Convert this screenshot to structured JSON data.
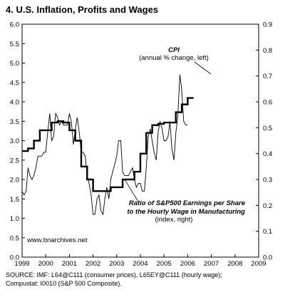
{
  "title": "4. U.S. Inflation, Profits and Wages",
  "source_lines": [
    "SOURCE: IMF: L64@C111 (consumer prices), L65EY@C111 (hourly wage);",
    "Compustat: I0010 (S&P 500 Composite)."
  ],
  "chart_data": {
    "type": "line",
    "title": "4. U.S. Inflation, Profits and Wages",
    "x_ticks": [
      "1999",
      "2000",
      "2001",
      "2002",
      "2003",
      "2004",
      "2005",
      "2006",
      "2007",
      "2008",
      "2009"
    ],
    "xlim": [
      1999,
      2009
    ],
    "ylim_left": [
      0,
      6
    ],
    "ylim_right": [
      0,
      0.9
    ],
    "y_left_ticks": [
      "0.0",
      "0.5",
      "1.0",
      "1.5",
      "2.0",
      "2.5",
      "3.0",
      "3.5",
      "4.0",
      "4.5",
      "5.0",
      "5.5",
      "6.0"
    ],
    "y_right_ticks": [
      "0.0",
      "0.1",
      "0.2",
      "0.3",
      "0.4",
      "0.5",
      "0.6",
      "0.7",
      "0.8",
      "0.9"
    ],
    "grid": false,
    "series": [
      {
        "name": "CPI",
        "axis": "left",
        "style": "thin",
        "points": [
          [
            1999.0,
            1.7
          ],
          [
            1999.08,
            1.6
          ],
          [
            1999.17,
            1.7
          ],
          [
            1999.25,
            2.3
          ],
          [
            1999.33,
            2.1
          ],
          [
            1999.42,
            2.0
          ],
          [
            1999.5,
            2.1
          ],
          [
            1999.58,
            2.3
          ],
          [
            1999.67,
            2.6
          ],
          [
            1999.75,
            2.6
          ],
          [
            1999.83,
            2.6
          ],
          [
            1999.92,
            2.7
          ],
          [
            2000.0,
            2.7
          ],
          [
            2000.08,
            3.2
          ],
          [
            2000.17,
            3.7
          ],
          [
            2000.25,
            3.0
          ],
          [
            2000.33,
            3.1
          ],
          [
            2000.42,
            3.7
          ],
          [
            2000.5,
            3.6
          ],
          [
            2000.58,
            3.4
          ],
          [
            2000.67,
            3.5
          ],
          [
            2000.75,
            3.4
          ],
          [
            2000.83,
            3.4
          ],
          [
            2000.92,
            3.4
          ],
          [
            2001.0,
            3.7
          ],
          [
            2001.08,
            3.5
          ],
          [
            2001.17,
            2.9
          ],
          [
            2001.25,
            3.3
          ],
          [
            2001.33,
            3.6
          ],
          [
            2001.42,
            3.2
          ],
          [
            2001.5,
            2.7
          ],
          [
            2001.58,
            2.7
          ],
          [
            2001.67,
            2.6
          ],
          [
            2001.75,
            2.1
          ],
          [
            2001.83,
            1.9
          ],
          [
            2001.92,
            1.6
          ],
          [
            2002.0,
            1.1
          ],
          [
            2002.08,
            1.1
          ],
          [
            2002.17,
            1.5
          ],
          [
            2002.25,
            1.6
          ],
          [
            2002.33,
            1.2
          ],
          [
            2002.42,
            1.1
          ],
          [
            2002.5,
            1.5
          ],
          [
            2002.58,
            1.8
          ],
          [
            2002.67,
            1.5
          ],
          [
            2002.75,
            2.0
          ],
          [
            2002.83,
            2.2
          ],
          [
            2002.92,
            2.4
          ],
          [
            2003.0,
            2.6
          ],
          [
            2003.08,
            3.0
          ],
          [
            2003.17,
            3.0
          ],
          [
            2003.25,
            2.2
          ],
          [
            2003.33,
            2.1
          ],
          [
            2003.42,
            2.1
          ],
          [
            2003.5,
            2.1
          ],
          [
            2003.58,
            2.2
          ],
          [
            2003.67,
            2.3
          ],
          [
            2003.75,
            2.0
          ],
          [
            2003.83,
            1.8
          ],
          [
            2003.92,
            1.9
          ],
          [
            2004.0,
            1.9
          ],
          [
            2004.08,
            1.7
          ],
          [
            2004.17,
            1.7
          ],
          [
            2004.25,
            2.3
          ],
          [
            2004.33,
            3.1
          ],
          [
            2004.42,
            3.3
          ],
          [
            2004.5,
            3.0
          ],
          [
            2004.58,
            2.7
          ],
          [
            2004.67,
            2.5
          ],
          [
            2004.75,
            3.2
          ],
          [
            2004.83,
            3.5
          ],
          [
            2004.92,
            3.3
          ],
          [
            2005.0,
            3.0
          ],
          [
            2005.08,
            3.0
          ],
          [
            2005.17,
            3.1
          ],
          [
            2005.25,
            3.5
          ],
          [
            2005.33,
            2.8
          ],
          [
            2005.42,
            2.5
          ],
          [
            2005.5,
            3.2
          ],
          [
            2005.58,
            3.6
          ],
          [
            2005.67,
            4.7
          ],
          [
            2005.75,
            4.3
          ],
          [
            2005.83,
            3.5
          ],
          [
            2005.92,
            3.4
          ],
          [
            2006.0,
            3.4
          ]
        ]
      },
      {
        "name": "Ratio of S&P500 Earnings per Share to the Hourly Wage in Manufacturing",
        "axis": "right",
        "style": "thick-step",
        "points": [
          [
            1999.0,
            0.41
          ],
          [
            1999.25,
            0.41
          ],
          [
            1999.25,
            0.42
          ],
          [
            1999.5,
            0.42
          ],
          [
            1999.5,
            0.45
          ],
          [
            1999.75,
            0.45
          ],
          [
            1999.75,
            0.49
          ],
          [
            2000.0,
            0.49
          ],
          [
            2000.0,
            0.49
          ],
          [
            2000.25,
            0.49
          ],
          [
            2000.25,
            0.52
          ],
          [
            2000.5,
            0.52
          ],
          [
            2000.5,
            0.525
          ],
          [
            2000.75,
            0.525
          ],
          [
            2000.75,
            0.52
          ],
          [
            2001.0,
            0.52
          ],
          [
            2001.0,
            0.49
          ],
          [
            2001.25,
            0.49
          ],
          [
            2001.25,
            0.45
          ],
          [
            2001.5,
            0.45
          ],
          [
            2001.5,
            0.35
          ],
          [
            2001.75,
            0.35
          ],
          [
            2001.75,
            0.3
          ],
          [
            2002.0,
            0.3
          ],
          [
            2002.0,
            0.255
          ],
          [
            2002.25,
            0.255
          ],
          [
            2002.25,
            0.255
          ],
          [
            2002.5,
            0.255
          ],
          [
            2002.5,
            0.255
          ],
          [
            2002.75,
            0.255
          ],
          [
            2002.75,
            0.27
          ],
          [
            2003.0,
            0.27
          ],
          [
            2003.0,
            0.27
          ],
          [
            2003.25,
            0.27
          ],
          [
            2003.25,
            0.3
          ],
          [
            2003.5,
            0.3
          ],
          [
            2003.5,
            0.3
          ],
          [
            2003.75,
            0.3
          ],
          [
            2003.75,
            0.33
          ],
          [
            2004.0,
            0.33
          ],
          [
            2004.0,
            0.4
          ],
          [
            2004.25,
            0.4
          ],
          [
            2004.25,
            0.48
          ],
          [
            2004.5,
            0.48
          ],
          [
            2004.5,
            0.51
          ],
          [
            2004.75,
            0.51
          ],
          [
            2004.75,
            0.515
          ],
          [
            2005.0,
            0.515
          ],
          [
            2005.0,
            0.52
          ],
          [
            2005.25,
            0.52
          ],
          [
            2005.25,
            0.52
          ],
          [
            2005.5,
            0.52
          ],
          [
            2005.5,
            0.56
          ],
          [
            2005.75,
            0.56
          ],
          [
            2005.75,
            0.59
          ],
          [
            2006.0,
            0.59
          ],
          [
            2006.0,
            0.615
          ],
          [
            2006.25,
            0.615
          ]
        ]
      }
    ],
    "annotations": {
      "cpi_label": "CPI",
      "cpi_sub": "(annual % change, left)",
      "ratio_line1": "Ratio of S&P500 Earnings per Share",
      "ratio_line2": "to the Hourly Wage in Manufacturing",
      "ratio_sub": "(index, right)",
      "website": "www.bnarchives.net"
    }
  }
}
